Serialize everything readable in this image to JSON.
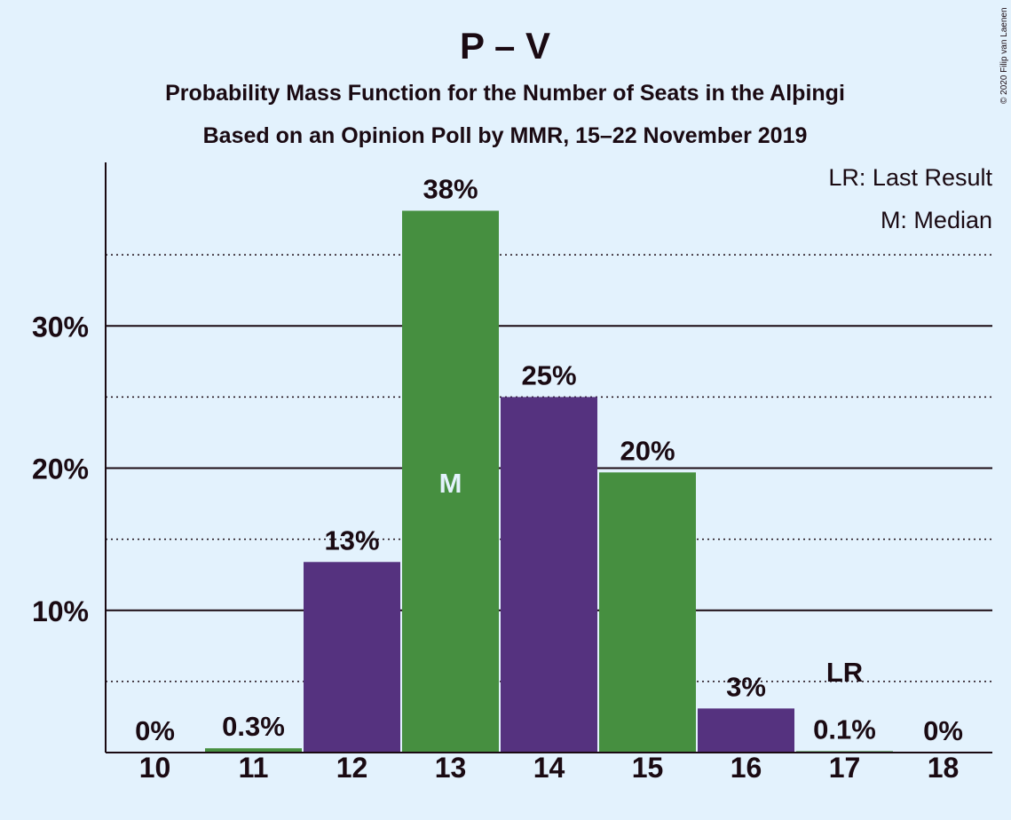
{
  "header": {
    "title": "P – V",
    "subtitle1": "Probability Mass Function for the Number of Seats in the Alþingi",
    "subtitle2": "Based on an Opinion Poll by MMR, 15–22 November 2019"
  },
  "legend": {
    "lr": "LR: Last Result",
    "m": "M: Median"
  },
  "copyright": "© 2020 Filip van Laenen",
  "colors": {
    "background": "#e3f2fd",
    "green": "#468f40",
    "purple": "#55327f",
    "text": "#1a0a12"
  },
  "chart_data": {
    "type": "bar",
    "title": "P – V",
    "categories": [
      "10",
      "11",
      "12",
      "13",
      "14",
      "15",
      "16",
      "17",
      "18"
    ],
    "values": [
      0,
      0.3,
      13.4,
      38.1,
      25.0,
      19.7,
      3.1,
      0.1,
      0
    ],
    "value_labels": [
      "0%",
      "0.3%",
      "13%",
      "38%",
      "25%",
      "20%",
      "3%",
      "0.1%",
      "0%"
    ],
    "bar_colors": [
      "green",
      "green",
      "purple",
      "green",
      "purple",
      "green",
      "purple",
      "green",
      "purple"
    ],
    "yticks": [
      10,
      20,
      30
    ],
    "ytick_labels": [
      "10%",
      "20%",
      "30%"
    ],
    "minor_gridlines": [
      5,
      15,
      25,
      35
    ],
    "ylim": [
      0,
      41.5
    ],
    "median_category": "13",
    "median_label": "M",
    "last_result_category": "17",
    "last_result_label": "LR",
    "legend_position": "top-right"
  }
}
